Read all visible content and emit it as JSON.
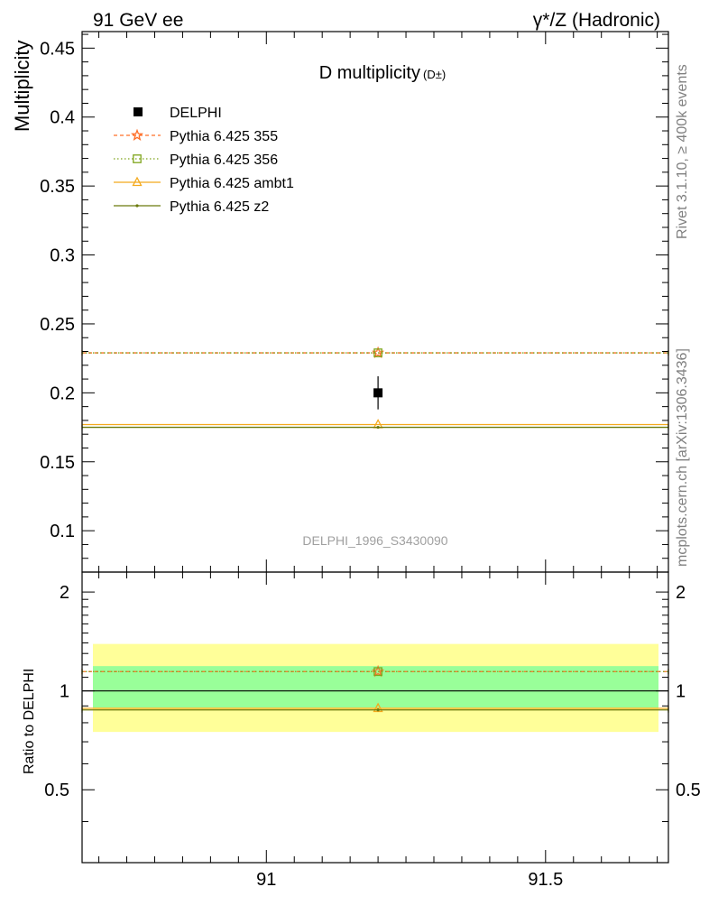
{
  "header": {
    "left": "91 GeV ee",
    "right": "γ*/Z (Hadronic)"
  },
  "side_text": {
    "upper": "Rivet 3.1.10, ≥ 400k events",
    "lower": "mcplots.cern.ch [arXiv:1306.3436]"
  },
  "chart_data": [
    {
      "type": "scatter",
      "title": "D multiplicity",
      "title_sub": "(D±)",
      "ylabel": "Multiplicity",
      "watermark": "DELPHI_1996_S3430090",
      "xlim": [
        90.67,
        91.72
      ],
      "ylim": [
        0.07,
        0.462
      ],
      "yticks": [
        0.1,
        0.15,
        0.2,
        0.25,
        0.3,
        0.35,
        0.4,
        0.45
      ],
      "ytick_labels": [
        "0.1",
        "0.15",
        "0.2",
        "0.25",
        "0.3",
        "0.35",
        "0.4",
        "0.45"
      ],
      "legend_position": "top-left",
      "data": {
        "name": "DELPHI",
        "x": 91.2,
        "y": 0.2,
        "yerr": 0.012,
        "color": "#000000"
      },
      "series": [
        {
          "name": "Pythia 6.425 355",
          "x_range": [
            90.67,
            91.72
          ],
          "x": 91.2,
          "y": 0.229,
          "color": "#ff6f28",
          "dash": "4,3",
          "marker": "star"
        },
        {
          "name": "Pythia 6.425 356",
          "x_range": [
            90.67,
            91.72
          ],
          "x": 91.2,
          "y": 0.229,
          "color": "#7fa51c",
          "dash": "1.5,2.5",
          "marker": "square"
        },
        {
          "name": "Pythia 6.425 ambt1",
          "x_range": [
            90.67,
            91.72
          ],
          "x": 91.2,
          "y": 0.177,
          "color": "#f4a91c",
          "dash": "",
          "marker": "triangle"
        },
        {
          "name": "Pythia 6.425 z2",
          "x_range": [
            90.67,
            91.72
          ],
          "x": 91.2,
          "y": 0.175,
          "color": "#6b7a0c",
          "dash": "",
          "marker": "dot"
        }
      ]
    },
    {
      "type": "scatter",
      "ylabel": "Ratio to DELPHI",
      "xlim": [
        90.67,
        91.72
      ],
      "ylim": [
        0.3,
        2.3
      ],
      "yticks": [
        0.5,
        1,
        2
      ],
      "ytick_labels": [
        "0.5",
        "1",
        "2"
      ],
      "xticks": [
        91,
        91.5
      ],
      "xtick_labels": [
        "91",
        "91.5"
      ],
      "bands": [
        {
          "name": "total uncertainty",
          "range": [
            0.75,
            1.39
          ],
          "color": "#ffff99"
        },
        {
          "name": "statistical uncertainty",
          "range": [
            0.89,
            1.19
          ],
          "color": "#99ff99"
        }
      ],
      "reference": 1,
      "series": [
        {
          "name": "Pythia 6.425 355",
          "x_range": [
            90.67,
            91.72
          ],
          "x": 91.2,
          "y": 1.145,
          "color": "#ff6f28",
          "dash": "4,3",
          "marker": "star"
        },
        {
          "name": "Pythia 6.425 356",
          "x_range": [
            90.67,
            91.72
          ],
          "x": 91.2,
          "y": 1.145,
          "color": "#7fa51c",
          "dash": "1.5,2.5",
          "marker": "square"
        },
        {
          "name": "Pythia 6.425 ambt1",
          "x_range": [
            90.67,
            91.72
          ],
          "x": 91.2,
          "y": 0.885,
          "color": "#f4a91c",
          "dash": "",
          "marker": "triangle"
        },
        {
          "name": "Pythia 6.425 z2",
          "x_range": [
            90.67,
            91.72
          ],
          "x": 91.2,
          "y": 0.875,
          "color": "#6b7a0c",
          "dash": "",
          "marker": "dot"
        }
      ]
    }
  ]
}
